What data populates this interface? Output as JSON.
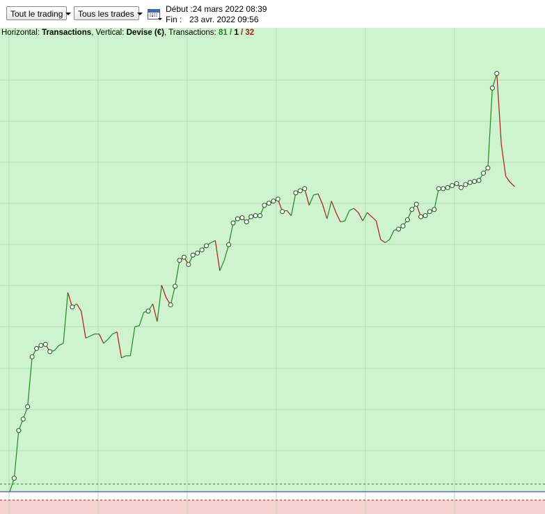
{
  "toolbar": {
    "trading_select": "Tout le trading",
    "trades_select": "Tous les trades",
    "calendar_icon": "calendar-icon",
    "debut_label": "Début :",
    "debut_value": "24 mars 2022 08:39",
    "fin_label": "Fin :",
    "fin_value": "23 avr. 2022 09:56"
  },
  "info": {
    "horizontal_label": "Horizontal: ",
    "horizontal_value": "Transactions",
    "vertical_label": ", Vertical: ",
    "vertical_value": "Devise (€)",
    "transactions_label": ", Transactions: ",
    "tx_win": "81",
    "sep1": " / ",
    "tx_neutral": "1",
    "sep2": " / ",
    "tx_loss": "32"
  },
  "colors": {
    "profit_zone": "#cff2cf",
    "loss_zone": "#f6d2d2",
    "up_line": "#1a8a1a",
    "down_line": "#b01818",
    "grid": "#b3dab3",
    "baseline": "#2a2aa0"
  },
  "chart_data": {
    "type": "line",
    "x_label": "",
    "y_label": "",
    "n_transactions": 114,
    "values": [
      0.0,
      1.3,
      5.9,
      7.0,
      8.2,
      13.0,
      13.8,
      14.1,
      14.2,
      13.5,
      13.6,
      14.1,
      14.3,
      19.2,
      17.8,
      18.1,
      17.4,
      14.8,
      15.0,
      15.2,
      15.2,
      14.3,
      14.7,
      15.2,
      15.4,
      12.9,
      13.1,
      13.1,
      15.9,
      16.0,
      17.3,
      17.4,
      18.1,
      16.4,
      19.9,
      18.7,
      18.0,
      19.8,
      22.3,
      22.6,
      21.9,
      22.8,
      23.0,
      23.3,
      23.7,
      24.0,
      24.2,
      21.3,
      22.3,
      23.8,
      25.9,
      26.3,
      26.4,
      26.0,
      26.5,
      26.6,
      26.6,
      27.6,
      27.8,
      28.0,
      28.2,
      27.0,
      27.1,
      26.6,
      28.8,
      29.0,
      29.2,
      27.6,
      28.6,
      28.7,
      27.7,
      26.3,
      28.0,
      26.9,
      26.0,
      26.1,
      27.1,
      27.3,
      26.9,
      26.1,
      26.9,
      26.5,
      26.1,
      24.3,
      24.0,
      24.3,
      25.2,
      25.3,
      25.6,
      26.2,
      27.2,
      27.7,
      26.5,
      26.6,
      27.0,
      27.2,
      29.2,
      29.2,
      29.3,
      29.5,
      29.7,
      29.3,
      29.6,
      29.8,
      29.9,
      30.0,
      30.7,
      31.2,
      38.9,
      40.3,
      33.5,
      30.4,
      29.8,
      29.4
    ],
    "markers": [
      1,
      2,
      3,
      4,
      5,
      6,
      7,
      8,
      9,
      14,
      31,
      36,
      37,
      38,
      39,
      40,
      41,
      42,
      43,
      44,
      49,
      50,
      51,
      52,
      53,
      54,
      55,
      56,
      57,
      58,
      59,
      60,
      61,
      64,
      65,
      66,
      87,
      88,
      89,
      90,
      91,
      92,
      93,
      94,
      95,
      96,
      97,
      98,
      99,
      100,
      101,
      102,
      103,
      104,
      105,
      106,
      107,
      108,
      109
    ]
  }
}
